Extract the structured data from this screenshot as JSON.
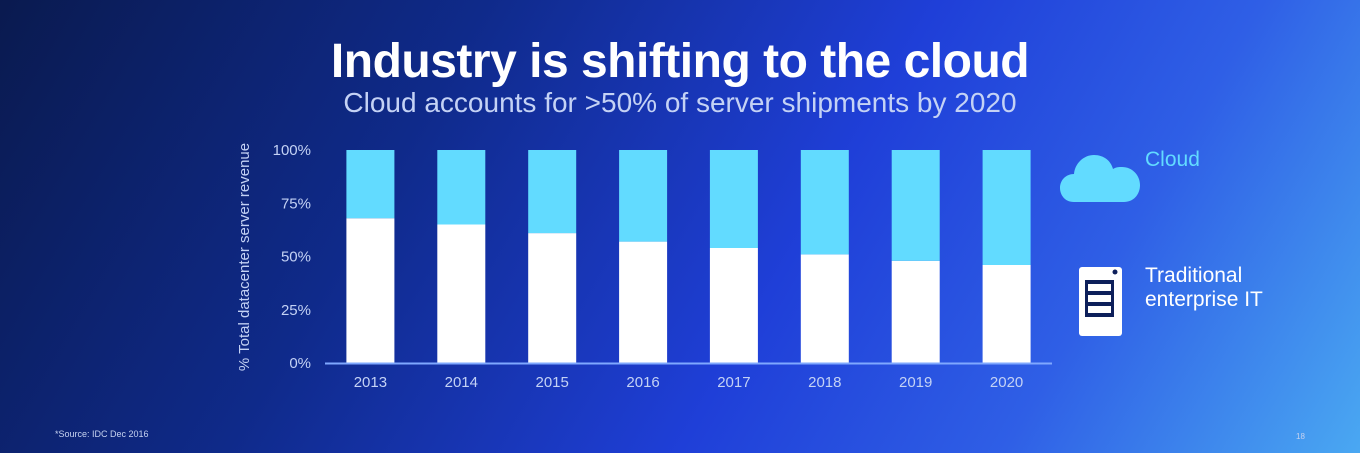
{
  "slide": {
    "title": "Industry is shifting to the cloud",
    "subtitle": "Cloud accounts for >50% of server shipments by 2020",
    "source": "*Source:  IDC Dec 2016",
    "page_number": "18"
  },
  "legend": {
    "cloud_label": "Cloud",
    "cloud_icon": "cloud-icon",
    "traditional_label_line1": "Traditional",
    "traditional_label_line2": "enterprise IT",
    "traditional_icon": "server-icon"
  },
  "colors": {
    "cloud": "#62dbff",
    "traditional": "#ffffff",
    "axis_text": "#c4d2f5",
    "baseline": "#7fa8ff"
  },
  "chart_data": {
    "type": "bar",
    "stacked": true,
    "categories": [
      "2013",
      "2014",
      "2015",
      "2016",
      "2017",
      "2018",
      "2019",
      "2020"
    ],
    "series": [
      {
        "name": "Traditional enterprise IT",
        "values": [
          68,
          65,
          61,
          57,
          54,
          51,
          48,
          46
        ]
      },
      {
        "name": "Cloud",
        "values": [
          32,
          35,
          39,
          43,
          46,
          49,
          52,
          54
        ]
      }
    ],
    "ylabel": "% Total datacenter server revenue",
    "xlabel": "",
    "ylim": [
      0,
      100
    ],
    "yticks": [
      "0%",
      "25%",
      "50%",
      "75%",
      "100%"
    ],
    "grid": false,
    "legend_position": "right"
  }
}
